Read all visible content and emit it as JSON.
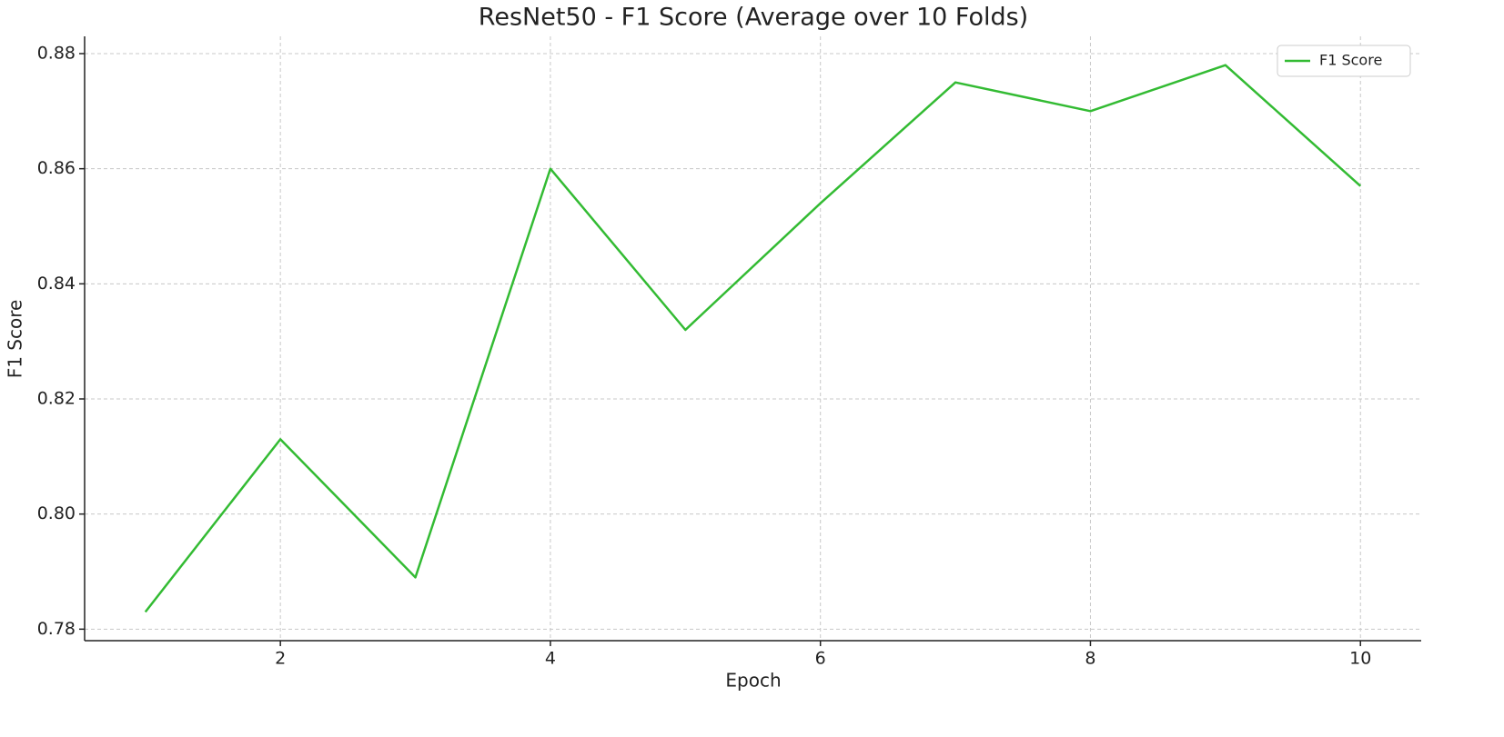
{
  "chart_data": {
    "type": "line",
    "title": "ResNet50 - F1 Score (Average over 10 Folds)",
    "x_label": "Epoch",
    "y_label": "F1 Score",
    "x": [
      1,
      2,
      3,
      4,
      5,
      6,
      7,
      8,
      9,
      10
    ],
    "series": [
      {
        "name": "F1 Score",
        "color": "#33bb33",
        "values": [
          0.783,
          0.813,
          0.789,
          0.86,
          0.832,
          0.854,
          0.875,
          0.87,
          0.878,
          0.857
        ]
      }
    ],
    "xlim": [
      0.55,
      10.45
    ],
    "xticks": [
      2,
      4,
      6,
      8,
      10
    ],
    "ylim": [
      0.778,
      0.883
    ],
    "yticks": [
      0.78,
      {
        "value": 0.8,
        "label": "0.80"
      },
      0.82,
      0.84,
      0.86,
      0.88
    ],
    "grid": true,
    "legend": "upper right"
  }
}
